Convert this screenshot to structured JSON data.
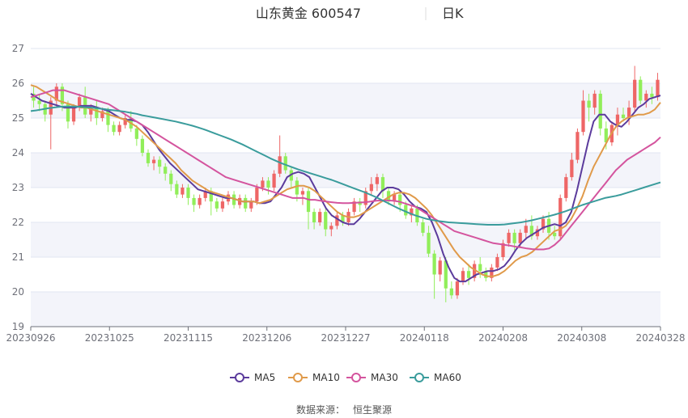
{
  "header": {
    "stock_title": "山东黄金 600547",
    "period": "日K"
  },
  "source": {
    "label": "数据来源：",
    "name": "恒生聚源"
  },
  "chart_data": {
    "type": "candlestick",
    "y_range": [
      19,
      27
    ],
    "y_ticks": [
      19,
      20,
      21,
      22,
      23,
      24,
      25,
      26,
      27
    ],
    "x_tick_labels": [
      "20230926",
      "20231025",
      "20231115",
      "20231206",
      "20231227",
      "20240118",
      "20240208",
      "20240308",
      "20240328"
    ],
    "grid": true,
    "up_color": "#ee6666",
    "down_color": "#91ee5a",
    "series": [
      {
        "name": "MA5",
        "color": "#5b3b9c",
        "values": [
          25.7,
          25.6,
          25.5,
          25.45,
          25.4,
          25.35,
          25.3,
          25.3,
          25.3,
          25.35,
          25.35,
          25.35,
          25.3,
          25.25,
          25.2,
          25.1,
          25.0,
          24.95,
          24.95,
          24.9,
          24.8,
          24.6,
          24.35,
          24.1,
          23.9,
          23.7,
          23.55,
          23.4,
          23.25,
          23.1,
          22.95,
          22.9,
          22.85,
          22.8,
          22.75,
          22.7,
          22.7,
          22.65,
          22.6,
          22.6,
          22.6,
          22.55,
          22.55,
          22.6,
          22.8,
          23.0,
          23.3,
          23.4,
          23.45,
          23.4,
          23.3,
          23.0,
          22.7,
          22.4,
          22.2,
          22.1,
          22.0,
          21.95,
          21.95,
          22.1,
          22.3,
          22.5,
          22.7,
          22.9,
          23.0,
          23.0,
          22.95,
          22.8,
          22.6,
          22.45,
          22.4,
          22.3,
          22.0,
          21.6,
          21.1,
          20.7,
          20.4,
          20.3,
          20.3,
          20.4,
          20.5,
          20.55,
          20.6,
          20.6,
          20.65,
          20.75,
          20.95,
          21.2,
          21.4,
          21.55,
          21.65,
          21.75,
          21.85,
          21.9,
          21.95,
          21.9,
          22.0,
          22.3,
          22.9,
          23.6,
          24.3,
          24.9,
          25.1,
          25.1,
          24.9,
          24.8,
          24.75,
          24.9,
          25.1,
          25.3,
          25.4,
          25.55,
          25.6,
          25.65
        ]
      },
      {
        "name": "MA10",
        "color": "#e09a4a",
        "values": [
          25.95,
          25.9,
          25.8,
          25.7,
          25.6,
          25.5,
          25.45,
          25.4,
          25.35,
          25.3,
          25.3,
          25.25,
          25.2,
          25.15,
          25.1,
          25.05,
          25.0,
          24.95,
          24.85,
          24.75,
          24.6,
          24.45,
          24.3,
          24.15,
          24.0,
          23.85,
          23.7,
          23.5,
          23.35,
          23.2,
          23.1,
          23.0,
          22.9,
          22.85,
          22.8,
          22.75,
          22.7,
          22.65,
          22.6,
          22.6,
          22.6,
          22.55,
          22.6,
          22.65,
          22.75,
          22.85,
          22.95,
          23.0,
          23.05,
          23.05,
          23.0,
          22.9,
          22.75,
          22.6,
          22.45,
          22.3,
          22.2,
          22.15,
          22.15,
          22.2,
          22.3,
          22.4,
          22.5,
          22.6,
          22.7,
          22.8,
          22.85,
          22.85,
          22.8,
          22.7,
          22.55,
          22.4,
          22.2,
          21.95,
          21.7,
          21.45,
          21.2,
          21.0,
          20.85,
          20.7,
          20.6,
          20.5,
          20.45,
          20.45,
          20.5,
          20.6,
          20.75,
          20.9,
          21.0,
          21.05,
          21.15,
          21.3,
          21.45,
          21.6,
          21.75,
          21.8,
          21.9,
          22.1,
          22.4,
          22.75,
          23.2,
          23.6,
          23.9,
          24.2,
          24.5,
          24.75,
          24.9,
          25.0,
          25.05,
          25.1,
          25.1,
          25.15,
          25.25,
          25.45
        ]
      },
      {
        "name": "MA30",
        "color": "#d4549e",
        "values": [
          25.6,
          25.65,
          25.7,
          25.75,
          25.8,
          25.8,
          25.8,
          25.75,
          25.7,
          25.65,
          25.6,
          25.55,
          25.5,
          25.45,
          25.4,
          25.3,
          25.2,
          25.1,
          25.0,
          24.9,
          24.8,
          24.7,
          24.6,
          24.5,
          24.4,
          24.3,
          24.2,
          24.1,
          24.0,
          23.9,
          23.8,
          23.7,
          23.6,
          23.5,
          23.4,
          23.3,
          23.25,
          23.2,
          23.15,
          23.1,
          23.05,
          23.0,
          22.95,
          22.9,
          22.85,
          22.8,
          22.75,
          22.7,
          22.7,
          22.7,
          22.65,
          22.65,
          22.62,
          22.6,
          22.58,
          22.56,
          22.55,
          22.55,
          22.56,
          22.57,
          22.58,
          22.6,
          22.62,
          22.63,
          22.63,
          22.62,
          22.6,
          22.55,
          22.5,
          22.45,
          22.35,
          22.25,
          22.15,
          22.05,
          21.95,
          21.85,
          21.75,
          21.7,
          21.65,
          21.6,
          21.55,
          21.5,
          21.45,
          21.4,
          21.38,
          21.35,
          21.33,
          21.3,
          21.28,
          21.25,
          21.23,
          21.22,
          21.22,
          21.25,
          21.35,
          21.5,
          21.7,
          21.9,
          22.1,
          22.3,
          22.5,
          22.7,
          22.9,
          23.1,
          23.3,
          23.5,
          23.65,
          23.8,
          23.9,
          24.0,
          24.1,
          24.2,
          24.3,
          24.45
        ]
      },
      {
        "name": "MA60",
        "color": "#3a9c9c",
        "values": [
          25.2,
          25.22,
          25.25,
          25.28,
          25.3,
          25.32,
          25.33,
          25.33,
          25.33,
          25.32,
          25.31,
          25.3,
          25.28,
          25.26,
          25.24,
          25.22,
          25.2,
          25.18,
          25.15,
          25.12,
          25.08,
          25.05,
          25.02,
          24.99,
          24.96,
          24.93,
          24.9,
          24.86,
          24.82,
          24.78,
          24.73,
          24.68,
          24.62,
          24.56,
          24.5,
          24.44,
          24.38,
          24.31,
          24.24,
          24.16,
          24.08,
          24.0,
          23.92,
          23.84,
          23.77,
          23.7,
          23.64,
          23.58,
          23.52,
          23.47,
          23.42,
          23.37,
          23.32,
          23.27,
          23.22,
          23.16,
          23.1,
          23.04,
          22.98,
          22.92,
          22.86,
          22.79,
          22.72,
          22.64,
          22.56,
          22.48,
          22.4,
          22.33,
          22.26,
          22.2,
          22.15,
          22.1,
          22.07,
          22.04,
          22.02,
          22.0,
          21.99,
          21.98,
          21.97,
          21.96,
          21.95,
          21.94,
          21.93,
          21.93,
          21.93,
          21.94,
          21.96,
          21.98,
          22.0,
          22.03,
          22.06,
          22.1,
          22.14,
          22.18,
          22.22,
          22.27,
          22.32,
          22.38,
          22.44,
          22.5,
          22.55,
          22.6,
          22.65,
          22.7,
          22.73,
          22.76,
          22.8,
          22.85,
          22.9,
          22.95,
          23.0,
          23.05,
          23.1,
          23.15
        ]
      }
    ],
    "candles": [
      [
        25.7,
        25.5,
        25.9,
        25.3
      ],
      [
        25.5,
        25.4,
        25.7,
        25.2
      ],
      [
        25.4,
        25.1,
        25.5,
        24.9
      ],
      [
        25.1,
        25.5,
        25.6,
        24.1
      ],
      [
        25.5,
        25.9,
        26.0,
        25.3
      ],
      [
        25.9,
        25.4,
        26.0,
        25.2
      ],
      [
        25.4,
        24.9,
        25.5,
        24.7
      ],
      [
        24.9,
        25.3,
        25.4,
        24.8
      ],
      [
        25.3,
        25.6,
        25.7,
        25.2
      ],
      [
        25.6,
        25.1,
        25.9,
        25.0
      ],
      [
        25.1,
        25.3,
        25.4,
        24.9
      ],
      [
        25.3,
        25.0,
        25.5,
        24.8
      ],
      [
        25.0,
        25.2,
        25.3,
        24.9
      ],
      [
        25.2,
        24.8,
        25.3,
        24.6
      ],
      [
        24.8,
        24.6,
        24.9,
        24.5
      ],
      [
        24.6,
        24.8,
        24.9,
        24.5
      ],
      [
        24.8,
        25.0,
        25.1,
        24.7
      ],
      [
        25.0,
        24.7,
        25.2,
        24.6
      ],
      [
        24.7,
        24.4,
        24.8,
        24.2
      ],
      [
        24.4,
        24.0,
        24.5,
        23.9
      ],
      [
        24.0,
        23.7,
        24.1,
        23.6
      ],
      [
        23.7,
        23.8,
        23.9,
        23.5
      ],
      [
        23.8,
        23.6,
        23.9,
        23.4
      ],
      [
        23.6,
        23.4,
        23.7,
        23.2
      ],
      [
        23.4,
        23.1,
        23.5,
        22.9
      ],
      [
        23.1,
        22.8,
        23.2,
        22.7
      ],
      [
        22.8,
        23.0,
        23.1,
        22.7
      ],
      [
        23.0,
        22.7,
        23.1,
        22.5
      ],
      [
        22.7,
        22.5,
        22.8,
        22.3
      ],
      [
        22.5,
        22.7,
        22.8,
        22.4
      ],
      [
        22.7,
        22.9,
        23.0,
        22.6
      ],
      [
        22.9,
        22.6,
        23.0,
        22.2
      ],
      [
        22.6,
        22.4,
        22.7,
        22.3
      ],
      [
        22.4,
        22.6,
        22.7,
        22.3
      ],
      [
        22.6,
        22.8,
        22.9,
        22.5
      ],
      [
        22.8,
        22.5,
        22.9,
        22.4
      ],
      [
        22.5,
        22.7,
        22.8,
        22.4
      ],
      [
        22.7,
        22.4,
        22.8,
        22.3
      ],
      [
        22.4,
        22.6,
        22.7,
        22.3
      ],
      [
        22.6,
        23.0,
        23.1,
        22.5
      ],
      [
        23.0,
        23.2,
        23.3,
        22.9
      ],
      [
        23.2,
        23.0,
        23.3,
        22.8
      ],
      [
        23.0,
        23.4,
        23.5,
        22.9
      ],
      [
        23.4,
        23.9,
        24.5,
        23.3
      ],
      [
        23.9,
        23.5,
        24.0,
        23.4
      ],
      [
        23.5,
        23.2,
        23.6,
        23.0
      ],
      [
        23.2,
        22.8,
        23.3,
        22.6
      ],
      [
        22.8,
        22.9,
        23.0,
        22.5
      ],
      [
        22.9,
        22.3,
        23.0,
        21.8
      ],
      [
        22.3,
        22.0,
        22.4,
        21.8
      ],
      [
        22.0,
        22.3,
        22.4,
        21.9
      ],
      [
        22.3,
        21.8,
        22.4,
        21.6
      ],
      [
        21.8,
        21.9,
        22.0,
        21.6
      ],
      [
        21.9,
        22.2,
        22.3,
        21.8
      ],
      [
        22.2,
        22.0,
        22.3,
        21.9
      ],
      [
        22.0,
        22.3,
        22.4,
        21.9
      ],
      [
        22.3,
        22.6,
        22.7,
        22.2
      ],
      [
        22.6,
        22.5,
        22.7,
        22.3
      ],
      [
        22.5,
        22.9,
        23.0,
        22.4
      ],
      [
        22.9,
        23.1,
        23.3,
        22.8
      ],
      [
        23.1,
        23.3,
        23.4,
        22.9
      ],
      [
        23.3,
        22.9,
        23.4,
        22.7
      ],
      [
        22.9,
        22.6,
        23.0,
        22.5
      ],
      [
        22.6,
        22.8,
        22.9,
        22.5
      ],
      [
        22.8,
        22.5,
        22.9,
        22.3
      ],
      [
        22.5,
        22.2,
        22.6,
        22.1
      ],
      [
        22.2,
        22.4,
        22.5,
        22.0
      ],
      [
        22.4,
        22.0,
        22.5,
        21.9
      ],
      [
        22.0,
        21.7,
        22.1,
        21.6
      ],
      [
        21.7,
        21.1,
        21.9,
        21.0
      ],
      [
        21.1,
        20.5,
        21.2,
        19.8
      ],
      [
        20.5,
        20.9,
        21.0,
        20.3
      ],
      [
        20.9,
        20.1,
        21.0,
        19.7
      ],
      [
        20.1,
        19.9,
        20.3,
        19.8
      ],
      [
        19.9,
        20.3,
        20.4,
        19.8
      ],
      [
        20.3,
        20.6,
        20.7,
        20.2
      ],
      [
        20.6,
        20.4,
        20.8,
        20.2
      ],
      [
        20.4,
        20.8,
        20.9,
        20.3
      ],
      [
        20.8,
        20.6,
        21.0,
        20.4
      ],
      [
        20.6,
        20.4,
        20.7,
        20.3
      ],
      [
        20.4,
        20.7,
        20.8,
        20.3
      ],
      [
        20.7,
        21.0,
        21.1,
        20.6
      ],
      [
        21.0,
        21.4,
        21.5,
        20.9
      ],
      [
        21.4,
        21.7,
        21.8,
        21.3
      ],
      [
        21.7,
        21.4,
        21.8,
        21.2
      ],
      [
        21.4,
        21.7,
        21.8,
        21.3
      ],
      [
        21.7,
        21.9,
        22.1,
        21.5
      ],
      [
        21.9,
        21.6,
        22.2,
        21.5
      ],
      [
        21.6,
        21.8,
        21.9,
        21.5
      ],
      [
        21.8,
        22.1,
        22.2,
        21.7
      ],
      [
        22.1,
        21.7,
        22.3,
        21.5
      ],
      [
        21.7,
        21.6,
        21.9,
        21.5
      ],
      [
        21.6,
        22.7,
        22.8,
        21.5
      ],
      [
        22.7,
        23.3,
        23.4,
        22.6
      ],
      [
        23.3,
        23.8,
        24.0,
        23.2
      ],
      [
        23.8,
        24.6,
        24.7,
        23.7
      ],
      [
        24.6,
        25.5,
        25.8,
        24.5
      ],
      [
        25.5,
        25.3,
        25.7,
        24.9
      ],
      [
        25.3,
        25.7,
        25.8,
        25.1
      ],
      [
        25.7,
        24.7,
        25.8,
        24.5
      ],
      [
        24.7,
        24.3,
        24.9,
        24.1
      ],
      [
        24.3,
        24.8,
        24.9,
        24.2
      ],
      [
        24.8,
        25.1,
        25.3,
        24.5
      ],
      [
        25.1,
        25.0,
        25.3,
        24.9
      ],
      [
        25.0,
        25.3,
        25.5,
        24.8
      ],
      [
        25.3,
        26.1,
        26.5,
        25.2
      ],
      [
        26.1,
        25.5,
        26.2,
        25.4
      ],
      [
        25.5,
        25.7,
        25.8,
        25.3
      ],
      [
        25.7,
        25.6,
        25.9,
        25.4
      ],
      [
        25.6,
        26.1,
        26.3,
        25.5
      ]
    ]
  },
  "legend": {
    "items": [
      {
        "label": "MA5",
        "color": "#5b3b9c"
      },
      {
        "label": "MA10",
        "color": "#e09a4a"
      },
      {
        "label": "MA30",
        "color": "#d4549e"
      },
      {
        "label": "MA60",
        "color": "#3a9c9c"
      }
    ]
  }
}
